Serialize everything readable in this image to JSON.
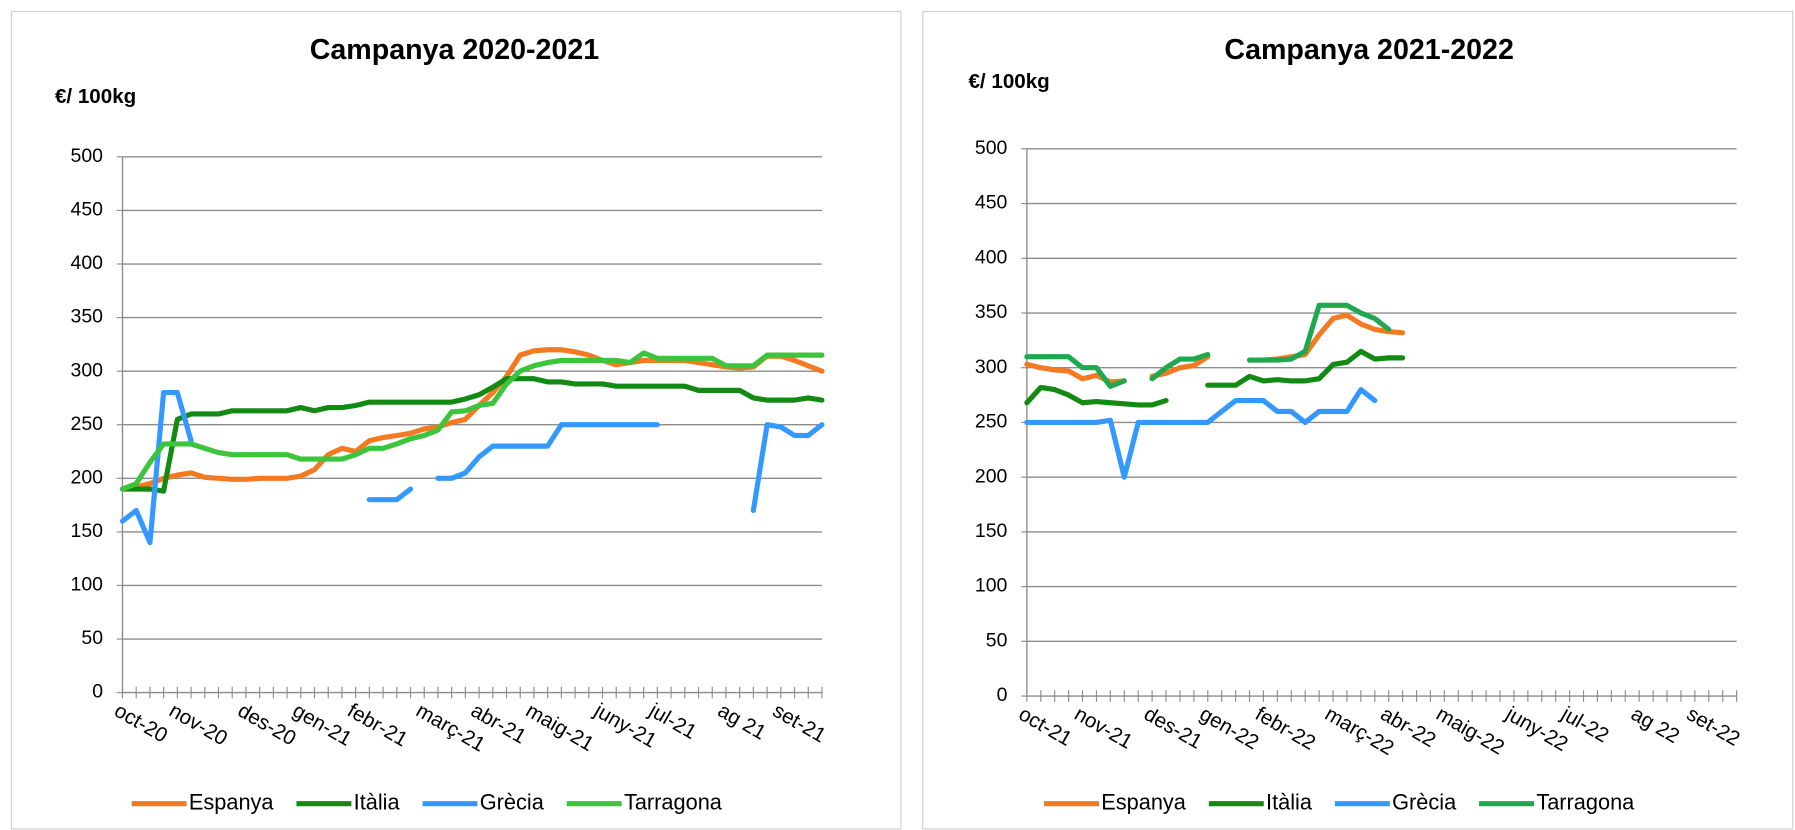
{
  "chart_data": [
    {
      "type": "line",
      "title": "Campanya 2020-2021",
      "y_label": "€/ 100kg",
      "categories": [
        "oct-20",
        null,
        null,
        null,
        "nov-20",
        null,
        null,
        null,
        null,
        "des-20",
        null,
        null,
        null,
        "gen-21",
        null,
        null,
        null,
        "febr-21",
        null,
        null,
        null,
        null,
        "març-21",
        null,
        null,
        null,
        "abr-21",
        null,
        null,
        null,
        "maig-21",
        null,
        null,
        null,
        null,
        "juny-21",
        null,
        null,
        null,
        "jul-21",
        null,
        null,
        null,
        null,
        "ag 21",
        null,
        null,
        null,
        "set-21",
        null,
        null,
        null
      ],
      "ylim": [
        0,
        500
      ],
      "yticks": [
        0,
        50,
        100,
        150,
        200,
        250,
        300,
        350,
        400,
        450,
        500
      ],
      "grid": true,
      "series": [
        {
          "name": "Espanya",
          "color": "#f47920",
          "values": [
            190,
            192,
            195,
            200,
            203,
            205,
            201,
            200,
            199,
            199,
            200,
            200,
            200,
            202,
            208,
            222,
            228,
            225,
            235,
            238,
            240,
            242,
            246,
            248,
            252,
            255,
            268,
            280,
            295,
            315,
            319,
            320,
            320,
            318,
            315,
            310,
            306,
            308,
            310,
            310,
            310,
            310,
            308,
            306,
            304,
            303,
            304,
            314,
            314,
            310,
            305,
            300
          ]
        },
        {
          "name": "Itàlia",
          "color": "#138a13",
          "values": [
            190,
            190,
            190,
            188,
            255,
            260,
            260,
            260,
            263,
            263,
            263,
            263,
            263,
            266,
            263,
            266,
            266,
            268,
            271,
            271,
            271,
            271,
            271,
            271,
            271,
            274,
            278,
            285,
            293,
            293,
            293,
            290,
            290,
            288,
            288,
            288,
            286,
            286,
            286,
            286,
            286,
            286,
            282,
            282,
            282,
            282,
            275,
            273,
            273,
            273,
            275,
            273
          ]
        },
        {
          "name": "Grècia",
          "color": "#3399ff",
          "values": [
            160,
            170,
            140,
            280,
            280,
            235,
            null,
            null,
            null,
            null,
            null,
            null,
            null,
            null,
            null,
            null,
            null,
            null,
            180,
            180,
            180,
            190,
            null,
            200,
            200,
            205,
            220,
            230,
            230,
            230,
            230,
            230,
            250,
            250,
            250,
            250,
            250,
            250,
            250,
            250,
            null,
            null,
            null,
            null,
            null,
            null,
            170,
            250,
            248,
            240,
            240,
            250
          ]
        },
        {
          "name": "Tarragona",
          "color": "#3cc43c",
          "values": [
            190,
            195,
            215,
            232,
            232,
            232,
            228,
            224,
            222,
            222,
            222,
            222,
            222,
            218,
            218,
            218,
            218,
            222,
            228,
            228,
            232,
            237,
            240,
            245,
            262,
            263,
            268,
            270,
            288,
            300,
            305,
            308,
            310,
            310,
            310,
            310,
            310,
            308,
            317,
            312,
            312,
            312,
            312,
            312,
            305,
            305,
            305,
            315,
            315,
            315,
            315,
            315
          ]
        }
      ]
    },
    {
      "type": "line",
      "title": "Campanya 2021-2022",
      "y_label": "€/ 100kg",
      "categories": [
        "oct-21",
        null,
        null,
        null,
        "nov-21",
        null,
        null,
        null,
        null,
        "des-21",
        null,
        null,
        null,
        "gen-22",
        null,
        null,
        null,
        "febr-22",
        null,
        null,
        null,
        null,
        "març-22",
        null,
        null,
        null,
        "abr-22",
        null,
        null,
        null,
        "maig-22",
        null,
        null,
        null,
        null,
        "juny-22",
        null,
        null,
        null,
        "jul-22",
        null,
        null,
        null,
        null,
        "ag 22",
        null,
        null,
        null,
        "set-22",
        null,
        null,
        null
      ],
      "ylim": [
        0,
        500
      ],
      "yticks": [
        0,
        50,
        100,
        150,
        200,
        250,
        300,
        350,
        400,
        450,
        500
      ],
      "grid": true,
      "series": [
        {
          "name": "Espanya",
          "color": "#f47920",
          "values": [
            303,
            300,
            298,
            297,
            290,
            293,
            287,
            288,
            null,
            292,
            295,
            300,
            302,
            310,
            null,
            null,
            307,
            307,
            308,
            310,
            312,
            330,
            345,
            348,
            340,
            335,
            333,
            332,
            null,
            null,
            null,
            null,
            null,
            null,
            null,
            null,
            null,
            null,
            null,
            null,
            null,
            null,
            null,
            null,
            null,
            null,
            null,
            null,
            null,
            null,
            null,
            null
          ]
        },
        {
          "name": "Itàlia",
          "color": "#138a13",
          "values": [
            268,
            282,
            280,
            275,
            268,
            269,
            268,
            267,
            266,
            266,
            270,
            null,
            null,
            284,
            284,
            284,
            292,
            288,
            289,
            288,
            288,
            290,
            303,
            305,
            315,
            308,
            309,
            309,
            null,
            null,
            null,
            null,
            null,
            null,
            null,
            null,
            null,
            null,
            null,
            null,
            null,
            null,
            null,
            null,
            null,
            null,
            null,
            null,
            null,
            null,
            null,
            null
          ]
        },
        {
          "name": "Grècia",
          "color": "#3399ff",
          "values": [
            250,
            250,
            250,
            250,
            250,
            250,
            252,
            200,
            250,
            250,
            250,
            250,
            250,
            250,
            260,
            270,
            270,
            270,
            260,
            260,
            250,
            260,
            260,
            260,
            280,
            270,
            null,
            null,
            null,
            null,
            null,
            null,
            null,
            null,
            null,
            null,
            null,
            null,
            null,
            null,
            null,
            null,
            null,
            null,
            null,
            null,
            null,
            null,
            null,
            null,
            null,
            null
          ]
        },
        {
          "name": "Tarragona",
          "color": "#1fa84f",
          "values": [
            310,
            310,
            310,
            310,
            300,
            300,
            283,
            288,
            null,
            290,
            300,
            308,
            308,
            312,
            null,
            null,
            307,
            307,
            307,
            308,
            315,
            357,
            357,
            357,
            350,
            345,
            335,
            null,
            null,
            null,
            null,
            null,
            null,
            null,
            null,
            null,
            null,
            null,
            null,
            null,
            null,
            null,
            null,
            null,
            null,
            null,
            null,
            null,
            null,
            null,
            null,
            null
          ]
        }
      ]
    }
  ]
}
